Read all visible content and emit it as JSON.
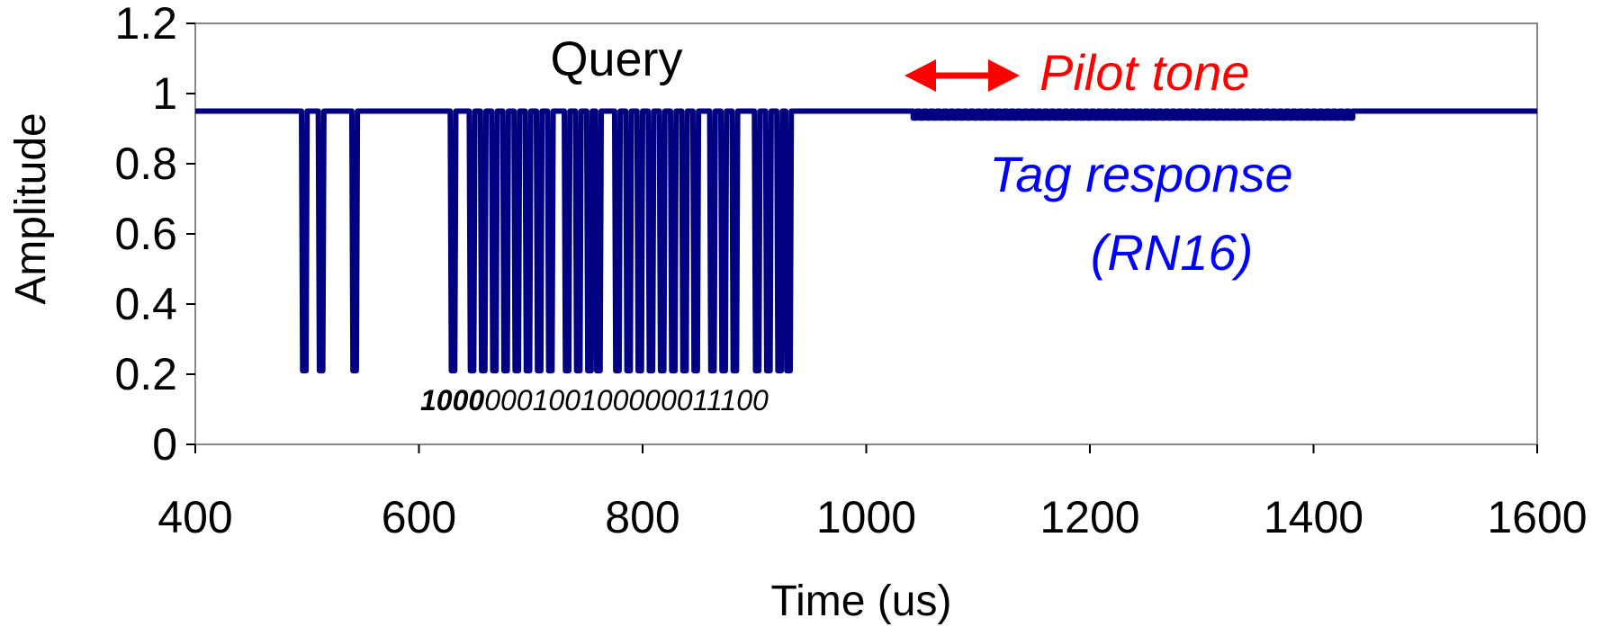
{
  "chart_data": {
    "type": "line",
    "xlabel": "Time (us)",
    "ylabel": "Amplitude",
    "xlim": [
      400,
      1600
    ],
    "ylim": [
      0,
      1.2
    ],
    "x_ticks": [
      "400",
      "600",
      "800",
      "1000",
      "1200",
      "1400",
      "1600"
    ],
    "y_ticks": [
      "0",
      "0.2",
      "0.4",
      "0.6",
      "0.8",
      "1",
      "1.2"
    ],
    "grid": false,
    "legend": "none",
    "series_color": "#000080",
    "high_level": 0.95,
    "low_level": 0.21,
    "response_low_level": 0.93,
    "query_start": 490,
    "query_end": 935,
    "query_low_pulses": [
      [
        495,
        500
      ],
      [
        510,
        515
      ],
      [
        540,
        545
      ],
      [
        628,
        633
      ],
      [
        645,
        650
      ],
      [
        655,
        660
      ],
      [
        665,
        670
      ],
      [
        675,
        680
      ],
      [
        685,
        690
      ],
      [
        695,
        700
      ],
      [
        705,
        710
      ],
      [
        715,
        720
      ],
      [
        730,
        735
      ],
      [
        740,
        745
      ],
      [
        750,
        755
      ],
      [
        758,
        763
      ],
      [
        775,
        780
      ],
      [
        785,
        790
      ],
      [
        795,
        800
      ],
      [
        805,
        810
      ],
      [
        815,
        820
      ],
      [
        825,
        830
      ],
      [
        835,
        840
      ],
      [
        845,
        850
      ],
      [
        860,
        865
      ],
      [
        870,
        875
      ],
      [
        880,
        885
      ],
      [
        900,
        905
      ],
      [
        910,
        915
      ],
      [
        920,
        925
      ],
      [
        928,
        933
      ]
    ],
    "response_start": 1042,
    "response_end": 1438,
    "annotations": {
      "query": "Query",
      "pilot_tone": "Pilot tone",
      "tag_response_line1": "Tag response",
      "tag_response_line2": "(RN16)",
      "bits_bold": "1000",
      "bits_rest": "000100100000011100"
    },
    "colors": {
      "signal": "#000080",
      "pilot": "#ff0000",
      "tag_response": "#0000ff",
      "axis": "#888888"
    }
  }
}
